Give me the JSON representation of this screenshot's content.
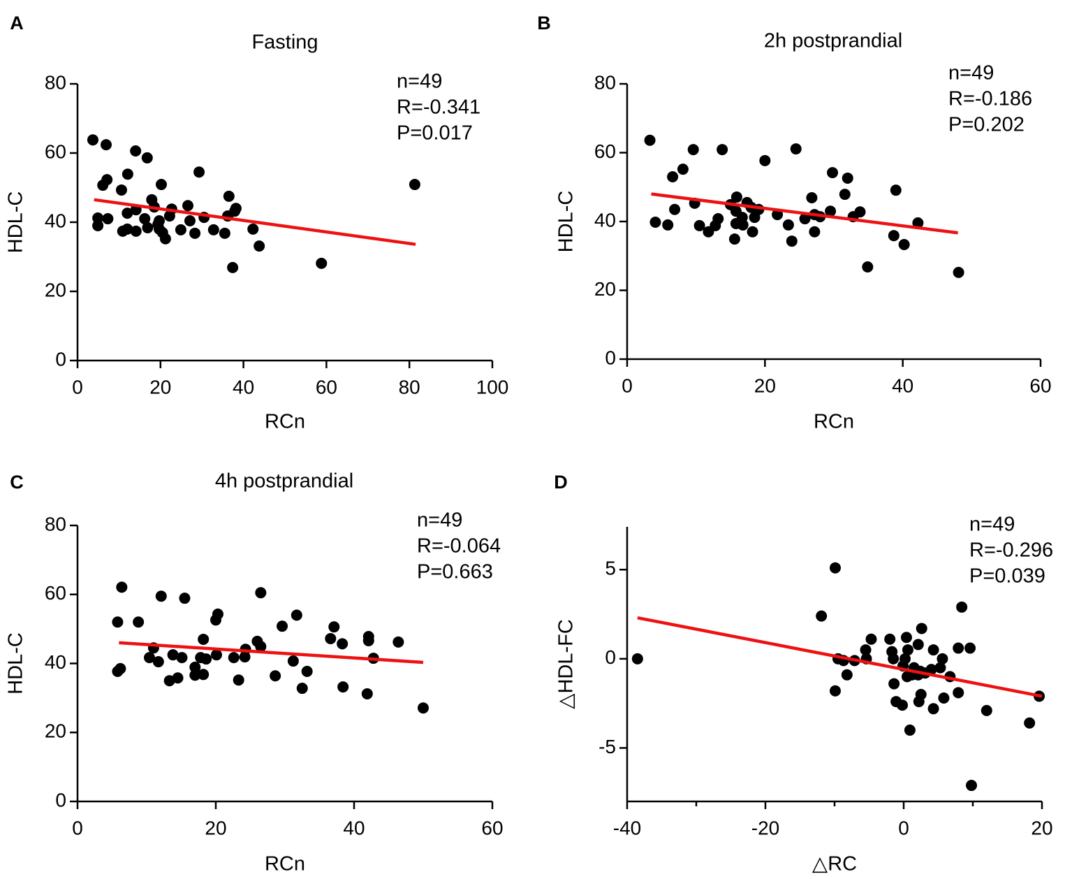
{
  "chart_data": [
    {
      "type": "scatter",
      "panel": "A",
      "title": "Fasting",
      "xlabel": "RCn",
      "ylabel": "HDL-C",
      "annotations": [
        "n=49",
        "R=-0.341",
        "P=0.017"
      ],
      "xlim": [
        0,
        100
      ],
      "xticks": [
        0,
        20,
        40,
        60,
        80,
        100
      ],
      "ylim": [
        0,
        80
      ],
      "yticks": [
        0,
        20,
        40,
        60,
        80
      ],
      "color": "#000000",
      "x": [
        3.7,
        6.9,
        14,
        16.8,
        29.3,
        7.1,
        6.1,
        20.2,
        12.1,
        10.6,
        81.3,
        36.5,
        17.9,
        26.6,
        18.5,
        22.7,
        38.2,
        14.1,
        4.9,
        7.3,
        12,
        16.2,
        19.7,
        22.2,
        30.5,
        36.2,
        37.9,
        4.9,
        27.1,
        10.9,
        12,
        14.1,
        16.9,
        19.7,
        24.9,
        28.3,
        32.8,
        35.5,
        21.2,
        42.3,
        43.8,
        37.4,
        58.8,
        19.4,
        20.5
      ],
      "values": [
        63.8,
        62.4,
        60.6,
        58.6,
        54.5,
        52.3,
        50.7,
        50.9,
        53.9,
        49.3,
        50.9,
        47.5,
        46.5,
        44.8,
        44.4,
        43.8,
        44,
        43.6,
        41.2,
        41,
        42.6,
        41,
        40.4,
        41.8,
        41.4,
        41.8,
        43.2,
        39,
        40.4,
        37.4,
        38,
        37.4,
        38.4,
        38,
        37.8,
        36.8,
        37.8,
        36.8,
        35.2,
        38,
        33.1,
        26.9,
        28.1,
        39.4,
        37
      ],
      "fit": {
        "x": [
          4,
          81.5
        ],
        "values": [
          46.5,
          33.6
        ],
        "color": "#ee1111"
      }
    },
    {
      "type": "scatter",
      "panel": "B",
      "title": "2h postprandial",
      "xlabel": "RCn",
      "ylabel": "HDL-C",
      "annotations": [
        "n=49",
        "R=-0.186",
        "P=0.202"
      ],
      "xlim": [
        0,
        60
      ],
      "xticks": [
        0,
        20,
        40,
        60
      ],
      "ylim": [
        0,
        80
      ],
      "yticks": [
        0,
        20,
        40,
        60,
        80
      ],
      "color": "#000000",
      "x": [
        3.3,
        9.6,
        13.8,
        24.5,
        20,
        8.1,
        6.6,
        29.8,
        32,
        39,
        15.9,
        26.8,
        31.6,
        17.4,
        15,
        9.8,
        18,
        6.9,
        19.1,
        15.8,
        29.5,
        33.8,
        21.8,
        27.2,
        28,
        32.8,
        25.8,
        13.2,
        16.7,
        4.1,
        18.5,
        5.9,
        10.5,
        12.8,
        16.8,
        15.8,
        23.4,
        42.2,
        11.8,
        18.2,
        27.2,
        38.7,
        15.6,
        23.9,
        40.2,
        34.9,
        48.1
      ],
      "values": [
        63.6,
        60.9,
        60.9,
        61.1,
        57.7,
        55.2,
        53,
        54.2,
        52.6,
        49.1,
        47.1,
        46.9,
        47.9,
        45.5,
        44.9,
        45.3,
        44.1,
        43.5,
        43.5,
        43,
        43,
        42.8,
        42,
        42,
        41.4,
        41.4,
        40.8,
        40.8,
        41.2,
        39.8,
        41.2,
        39,
        38.8,
        38.8,
        39,
        39.4,
        39,
        39.6,
        37,
        37,
        37,
        35.9,
        34.9,
        34.3,
        33.3,
        26.8,
        25.2
      ],
      "fit": {
        "x": [
          3.5,
          48
        ],
        "values": [
          48,
          36.7
        ],
        "color": "#ee1111"
      }
    },
    {
      "type": "scatter",
      "panel": "C",
      "title": "4h postprandial",
      "xlabel": "RCn",
      "ylabel": "HDL-C",
      "annotations": [
        "n=49",
        "R=-0.064",
        "P=0.663"
      ],
      "xlim": [
        0,
        60
      ],
      "xticks": [
        0,
        20,
        40,
        60
      ],
      "ylim": [
        0,
        80
      ],
      "yticks": [
        0,
        20,
        40,
        60,
        80
      ],
      "color": "#000000",
      "x": [
        6.4,
        12.1,
        15.5,
        26.5,
        20.3,
        31.7,
        5.8,
        8.8,
        20,
        29.6,
        37.1,
        42.1,
        18.2,
        36.6,
        46.4,
        42.1,
        26,
        38.3,
        26.5,
        11,
        24.3,
        20.1,
        13.8,
        17.8,
        22.6,
        10.4,
        15.1,
        42.8,
        18.6,
        24.2,
        11.7,
        31.2,
        6.2,
        5.8,
        17,
        33.2,
        17,
        18.2,
        28.6,
        13.3,
        14.5,
        23.3,
        32.5,
        38.4,
        41.9,
        50
      ],
      "values": [
        62.1,
        59.5,
        58.9,
        60.5,
        54.3,
        54,
        52,
        52,
        52.6,
        50.8,
        50.6,
        47.8,
        47,
        47.2,
        46.2,
        46.6,
        46.4,
        45.7,
        44.9,
        44.5,
        44.1,
        42.5,
        42.5,
        41.7,
        41.7,
        41.7,
        41.7,
        41.5,
        41.3,
        41.9,
        40.5,
        40.7,
        38.5,
        37.7,
        38.9,
        37.7,
        36.6,
        36.8,
        36.4,
        35,
        35.8,
        35.2,
        32.8,
        33.2,
        31.2,
        27.1
      ],
      "fit": {
        "x": [
          6,
          50
        ],
        "values": [
          46,
          40.3
        ],
        "color": "#ee1111"
      }
    },
    {
      "type": "scatter",
      "panel": "D",
      "xlabel": "△RC",
      "ylabel": "△HDL-FC",
      "annotations": [
        "n=49",
        "R=-0.296",
        "P=0.039"
      ],
      "xlim": [
        -40,
        20
      ],
      "xticks": [
        -40,
        -20,
        0,
        20
      ],
      "xminorticks": [
        -30,
        -10,
        10
      ],
      "ylim": [
        -8,
        7.4
      ],
      "yticks": [
        -5,
        0,
        5
      ],
      "color": "#000000",
      "x": [
        -38.5,
        -9.9,
        -11.9,
        8.4,
        2.6,
        -4.7,
        -2,
        0.4,
        2.1,
        4.3,
        7.9,
        9.6,
        -5.5,
        -1.7,
        0.6,
        -9.5,
        -8.7,
        -7.1,
        -5.4,
        -1.5,
        0.2,
        5.6,
        -0.1,
        1.5,
        2.4,
        4,
        5.3,
        1.2,
        2.1,
        0.5,
        3.1,
        -8.2,
        6.7,
        -1.4,
        -9.9,
        2.5,
        7.9,
        5.8,
        19.6,
        -1.1,
        -0.2,
        2.2,
        4.3,
        12,
        18.2,
        0.9,
        9.8
      ],
      "values": [
        0,
        5.1,
        2.4,
        2.9,
        1.7,
        1.1,
        1.1,
        1.2,
        0.8,
        0.5,
        0.6,
        0.6,
        0.5,
        0.4,
        0.5,
        0,
        -0.1,
        -0.1,
        0,
        0,
        0,
        0,
        -0.4,
        -0.5,
        -0.7,
        -0.6,
        -0.5,
        -0.9,
        -0.9,
        -1,
        -0.8,
        -0.9,
        -1,
        -1.4,
        -1.8,
        -2,
        -1.9,
        -2.2,
        -2.1,
        -2.4,
        -2.6,
        -2.4,
        -2.8,
        -2.9,
        -3.6,
        -4,
        -7.1
      ],
      "fit": {
        "x": [
          -38.5,
          20
        ],
        "values": [
          2.3,
          -2.1
        ],
        "color": "#ee1111"
      }
    }
  ]
}
